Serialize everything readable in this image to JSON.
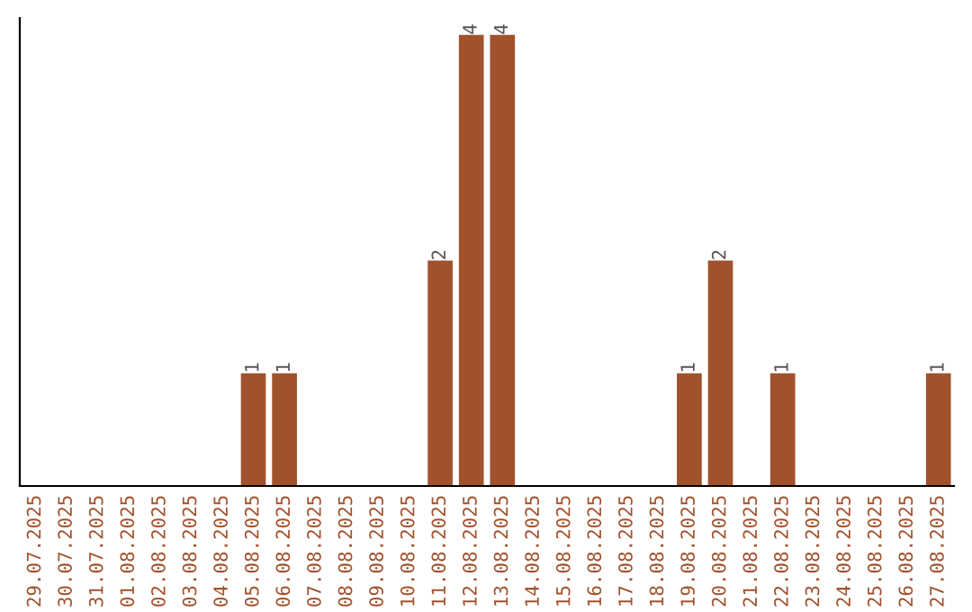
{
  "chart_data": {
    "type": "bar",
    "categories": [
      "29.07.2025",
      "30.07.2025",
      "31.07.2025",
      "01.08.2025",
      "02.08.2025",
      "03.08.2025",
      "04.08.2025",
      "05.08.2025",
      "06.08.2025",
      "07.08.2025",
      "08.08.2025",
      "09.08.2025",
      "10.08.2025",
      "11.08.2025",
      "12.08.2025",
      "13.08.2025",
      "14.08.2025",
      "15.08.2025",
      "16.08.2025",
      "17.08.2025",
      "18.08.2025",
      "19.08.2025",
      "20.08.2025",
      "21.08.2025",
      "22.08.2025",
      "23.08.2025",
      "24.08.2025",
      "25.08.2025",
      "26.08.2025",
      "27.08.2025"
    ],
    "values": [
      0,
      0,
      0,
      0,
      0,
      0,
      0,
      1,
      1,
      0,
      0,
      0,
      0,
      2,
      4,
      4,
      0,
      0,
      0,
      0,
      0,
      1,
      2,
      0,
      1,
      0,
      0,
      0,
      0,
      1
    ],
    "value_labels": [
      null,
      null,
      null,
      null,
      null,
      null,
      null,
      "1",
      "1",
      null,
      null,
      null,
      null,
      "2",
      "4",
      "4",
      null,
      null,
      null,
      null,
      null,
      "1",
      "2",
      null,
      "1",
      null,
      null,
      null,
      null,
      "1"
    ],
    "color": "#a0522d",
    "ylim": [
      0,
      4.15
    ],
    "tick_labels": "x",
    "grid": false,
    "legend": false
  }
}
